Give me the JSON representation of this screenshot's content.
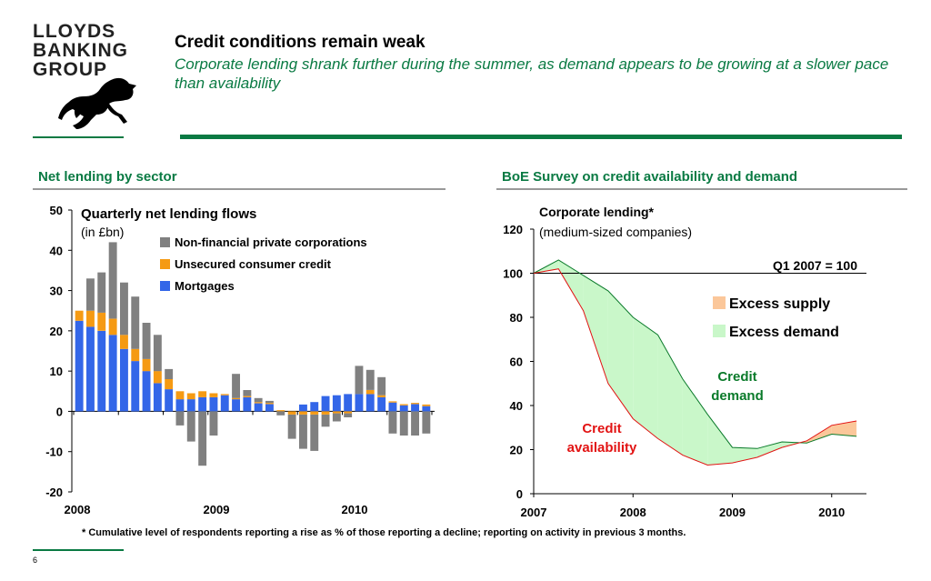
{
  "logo": {
    "lines": [
      "LLOYDS",
      "BANKING",
      "GROUP"
    ],
    "icon": "black-horse-icon"
  },
  "header": {
    "title": "Credit conditions remain weak",
    "subtitle": "Corporate lending shrank further during the summer, as demand appears to be growing at a slower pace than availability"
  },
  "left_panel": {
    "section_title": "Net lending by sector"
  },
  "right_panel": {
    "section_title": "BoE Survey on credit availability and demand"
  },
  "footnote": "* Cumulative level of respondents reporting a rise as % of those reporting a decline; reporting on activity in previous 3 months.",
  "page_number": "6",
  "colors": {
    "brand_green": "#0a7a43",
    "mortgages": "#3366e8",
    "unsecured": "#f59a13",
    "nfpc": "#808080",
    "excess_supply": "#fbc79a",
    "excess_demand": "#c9f7c9",
    "demand_line": "#0a7a2a",
    "availability_line": "#e21313"
  },
  "chart_data": [
    {
      "type": "bar",
      "stacked": true,
      "title": "Quarterly net lending flows",
      "subtitle": "(in £bn)",
      "ylim": [
        -20,
        50
      ],
      "yticks": [
        -20,
        -10,
        0,
        10,
        20,
        30,
        40,
        50
      ],
      "year_labels": [
        "2008",
        "2009",
        "2010"
      ],
      "legend_position": "top-right",
      "series": [
        {
          "name": "Non-financial private corporations",
          "color": "#808080",
          "values": [
            0,
            8,
            10,
            19,
            13,
            13,
            9,
            9,
            2.5,
            -3.5,
            -7.5,
            -13.5,
            -6,
            0,
            6,
            1.5,
            1,
            0.5,
            -1,
            -6,
            -8.5,
            -9,
            -3,
            -2,
            -1,
            7,
            5,
            4.5,
            -5.5,
            -6,
            -6,
            -5.5
          ]
        },
        {
          "name": "Unsecured consumer credit",
          "color": "#f59a13",
          "values": [
            2.5,
            4,
            4.5,
            4,
            3.5,
            3,
            3,
            3,
            2.5,
            2,
            1.5,
            1.5,
            1,
            0.3,
            0.3,
            0.3,
            0.3,
            0.3,
            0.3,
            -0.8,
            -0.8,
            -0.8,
            -0.8,
            -0.5,
            -0.5,
            0,
            1,
            0.5,
            0.3,
            0.3,
            0.3,
            0.4
          ]
        },
        {
          "name": "Mortgages",
          "color": "#3366e8",
          "values": [
            22.5,
            21,
            20,
            19,
            15.5,
            12.5,
            10,
            7,
            5.5,
            3,
            3,
            3.5,
            3.5,
            4,
            3,
            3.5,
            2,
            1.8,
            0,
            0,
            1.7,
            2.3,
            3.8,
            4,
            4.3,
            4.3,
            4.3,
            3.5,
            2.2,
            1.5,
            1.8,
            1.3
          ]
        }
      ]
    },
    {
      "type": "area",
      "title": "Corporate lending*",
      "subtitle": "(medium-sized companies)",
      "annotation": "Q1 2007 = 100",
      "reference_line": 100,
      "ylim": [
        0,
        120
      ],
      "yticks": [
        0,
        20,
        40,
        60,
        80,
        100,
        120
      ],
      "x_labels": [
        "2007",
        "2008",
        "2009",
        "2010"
      ],
      "x": [
        2007.0,
        2007.25,
        2007.5,
        2007.75,
        2008.0,
        2008.25,
        2008.5,
        2008.75,
        2009.0,
        2009.25,
        2009.5,
        2009.75,
        2010.0,
        2010.25
      ],
      "legend_position": "right",
      "series": [
        {
          "name": "Credit demand",
          "color": "#0a7a2a",
          "values": [
            100,
            106,
            99,
            92,
            80,
            72,
            52,
            36,
            21,
            20.5,
            23.5,
            23,
            27,
            26
          ]
        },
        {
          "name": "Credit availability",
          "color": "#e21313",
          "values": [
            100,
            102,
            83,
            50,
            34,
            25,
            17.5,
            13,
            14,
            16.5,
            21,
            24,
            31,
            33
          ]
        }
      ],
      "areas": [
        {
          "name": "Excess supply",
          "color": "#fbc79a"
        },
        {
          "name": "Excess demand",
          "color": "#c9f7c9"
        }
      ]
    }
  ]
}
